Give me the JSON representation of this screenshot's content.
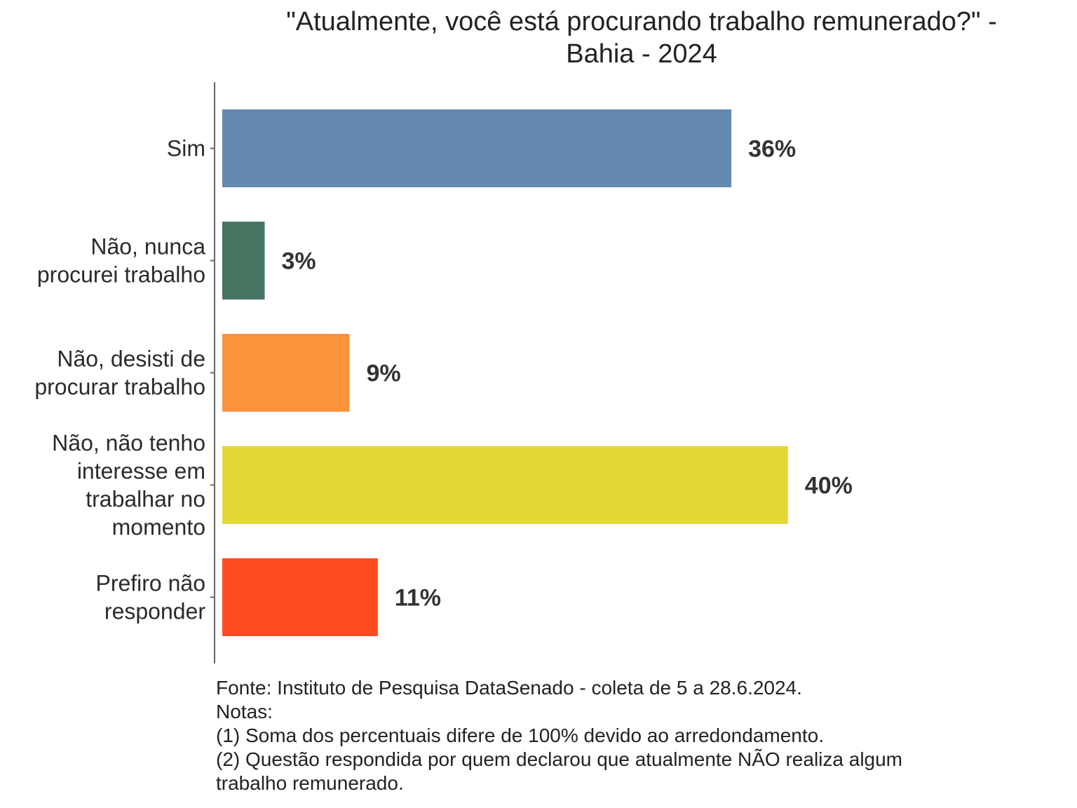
{
  "chart_data": {
    "type": "bar",
    "orientation": "horizontal",
    "title": "\"Atualmente, você está procurando trabalho remunerado?\" - Bahia - 2024",
    "title_lines": [
      "\"Atualmente, você está procurando trabalho remunerado?\" -",
      "Bahia - 2024"
    ],
    "categories": [
      [
        "Sim"
      ],
      [
        "Não, nunca",
        "procurei trabalho"
      ],
      [
        "Não, desisti de",
        "procurar trabalho"
      ],
      [
        "Não, não tenho",
        "interesse em",
        "trabalhar no",
        "momento"
      ],
      [
        "Prefiro não",
        "responder"
      ]
    ],
    "values": [
      36,
      3,
      9,
      40,
      11
    ],
    "value_labels": [
      "36%",
      "3%",
      "9%",
      "40%",
      "11%"
    ],
    "colors": [
      "#6389b0",
      "#467562",
      "#fb923c",
      "#e3d734",
      "#ff4b22"
    ],
    "xlim": [
      0,
      40
    ],
    "xlabel": "",
    "ylabel": "",
    "grid": false,
    "legend": "none"
  },
  "footnote": {
    "lines": [
      "Fonte: Instituto de Pesquisa DataSenado - coleta de 5 a 28.6.2024.",
      "Notas:",
      "(1) Soma dos percentuais difere de 100% devido ao arredondamento.",
      "(2) Questão respondida por quem declarou que atualmente NÃO realiza algum",
      "trabalho remunerado."
    ]
  }
}
